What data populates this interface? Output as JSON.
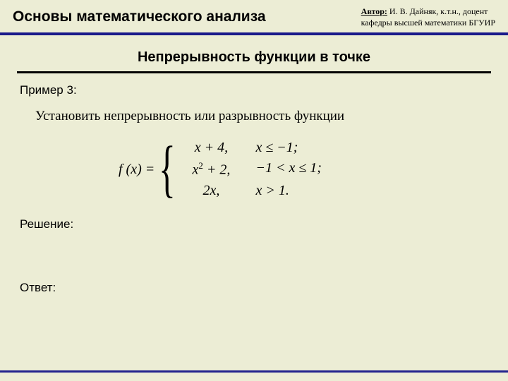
{
  "header": {
    "course_title": "Основы математического анализа",
    "author_label": "Автор:",
    "author_line1": "  И. В. Дайняк, к.т.н., доцент",
    "author_line2": "кафедры высшей математики БГУИР"
  },
  "topic": "Непрерывность функции в точке",
  "example": {
    "label": "Пример 3:",
    "task": "Установить непрерывность или разрывность функции"
  },
  "formula": {
    "lhs": "f (x) =",
    "rows": [
      {
        "expr": "x + 4,",
        "cond": "x ≤ −1;"
      },
      {
        "expr": "x² + 2,",
        "cond": "−1 < x ≤ 1;"
      },
      {
        "expr": "2x,",
        "cond": "x > 1."
      }
    ]
  },
  "labels": {
    "solution": "Решение:",
    "answer": "Ответ:"
  },
  "colors": {
    "background": "#ecedd5",
    "header_rule": "#1a1a8b",
    "footer_rule": "#23238e",
    "text": "#000000"
  },
  "fonts": {
    "heading_family": "Arial",
    "body_family": "Times New Roman",
    "course_title_size_pt": 16,
    "topic_size_pt": 15,
    "task_size_pt": 14,
    "formula_size_pt": 15
  }
}
